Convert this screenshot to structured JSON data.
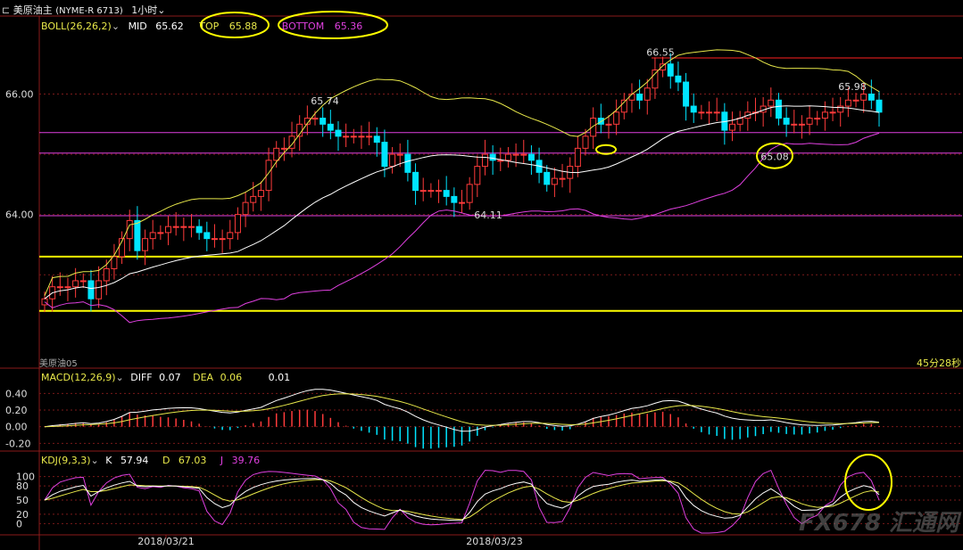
{
  "header": {
    "icon": "chart-small-icon",
    "symbol_label": "美原油主",
    "symbol_code": "(NYME-R 6713)",
    "period": "1小时"
  },
  "boll_panel": {
    "indicator": "BOLL(26,26,2)",
    "mid_label": "MID",
    "mid_value": "65.62",
    "top_label": "TOP",
    "top_value": "65.88",
    "bottom_label": "BOTTOM",
    "bottom_value": "65.36",
    "overlay_label": "美原油05",
    "timer": "45分28秒"
  },
  "macd_panel": {
    "indicator": "MACD(12,26,9)",
    "diff_label": "DIFF",
    "diff_value": "0.07",
    "dea_label": "DEA",
    "dea_value": "0.06",
    "macd_value": "0.01"
  },
  "kdj_panel": {
    "indicator": "KDJ(9,3,3)",
    "k_label": "K",
    "k_value": "57.94",
    "d_label": "D",
    "d_value": "67.03",
    "j_label": "J",
    "j_value": "39.76"
  },
  "watermark": "FX678 汇通网",
  "colors": {
    "up": "#ff3b3b",
    "down": "#00e5ff",
    "mid": "#ffffff",
    "upper": "#e8e84a",
    "lower": "#e040e0",
    "grid_dash": "#7a1a1a",
    "highlight_line": "#ffff00",
    "support_line": "#e040e0",
    "resistance_line": "#ff2020"
  },
  "chart_data": {
    "type": "candlestick",
    "y_ticks": [
      "66.00",
      "64.00"
    ],
    "macd_ticks": [
      "0.40",
      "0.20",
      "0.00",
      "-0.20"
    ],
    "kdj_ticks": [
      "100",
      "80",
      "50",
      "20",
      "0"
    ],
    "x_labels": [
      "2018/03/21",
      "2018/03/23"
    ],
    "ylim": [
      61.7,
      67.0
    ],
    "annotations": [
      {
        "text": "66.55",
        "value": 66.55,
        "kind": "high"
      },
      {
        "text": "65.74",
        "value": 65.74,
        "kind": "high"
      },
      {
        "text": "65.98",
        "value": 65.98,
        "kind": "high"
      },
      {
        "text": "64.11",
        "value": 64.11,
        "kind": "low"
      },
      {
        "text": "65.08",
        "value": 65.08,
        "kind": "low"
      }
    ],
    "horizontal_levels": [
      {
        "value": 65.36,
        "kind": "support"
      },
      {
        "value": 65.02,
        "kind": "support"
      },
      {
        "value": 63.98,
        "kind": "support"
      },
      {
        "value": 63.3,
        "kind": "highlight"
      },
      {
        "value": 62.4,
        "kind": "highlight"
      },
      {
        "value": 66.6,
        "kind": "resistance"
      }
    ],
    "candles_close": [
      62.6,
      62.8,
      62.8,
      62.8,
      62.9,
      62.9,
      62.6,
      62.9,
      63.1,
      63.3,
      63.6,
      63.9,
      63.4,
      63.6,
      63.7,
      63.7,
      63.8,
      63.8,
      63.8,
      63.8,
      63.7,
      63.6,
      63.6,
      63.6,
      63.7,
      64.0,
      64.2,
      64.3,
      64.4,
      64.9,
      65.1,
      65.1,
      65.3,
      65.5,
      65.6,
      65.6,
      65.5,
      65.4,
      65.3,
      65.3,
      65.3,
      65.3,
      65.3,
      65.2,
      64.8,
      65.0,
      65.0,
      64.7,
      64.4,
      64.4,
      64.4,
      64.4,
      64.3,
      64.2,
      64.2,
      64.5,
      64.8,
      65.0,
      64.9,
      64.9,
      65.0,
      65.0,
      65.0,
      64.9,
      64.7,
      64.5,
      64.6,
      64.6,
      64.8,
      65.1,
      65.3,
      65.6,
      65.5,
      65.5,
      65.7,
      65.9,
      66.0,
      65.9,
      66.1,
      66.4,
      66.5,
      66.3,
      66.2,
      65.8,
      65.7,
      65.7,
      65.7,
      65.7,
      65.4,
      65.5,
      65.6,
      65.7,
      65.7,
      65.8,
      65.9,
      65.6,
      65.5,
      65.5,
      65.5,
      65.6,
      65.6,
      65.7,
      65.7,
      65.8,
      65.9,
      65.9,
      66.0,
      65.9,
      65.7
    ]
  }
}
